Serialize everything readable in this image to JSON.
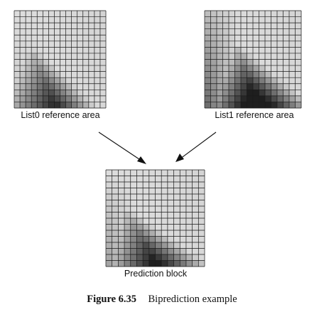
{
  "figure": {
    "caption_number": "Figure 6.35",
    "caption_text": "Biprediction example"
  },
  "blocks": [
    {
      "key": "list0",
      "label": "List0 reference area",
      "blob_profile": "list0"
    },
    {
      "key": "list1",
      "label": "List1 reference area",
      "blob_profile": "list1"
    },
    {
      "key": "prediction",
      "label": "Prediction block",
      "blob_profile": "prediction"
    }
  ],
  "colors": {
    "background": "#ffffff",
    "grid_line": "#1a1a1a",
    "light_gray": "#e2e2e2",
    "dark": "#1e1e1e"
  }
}
